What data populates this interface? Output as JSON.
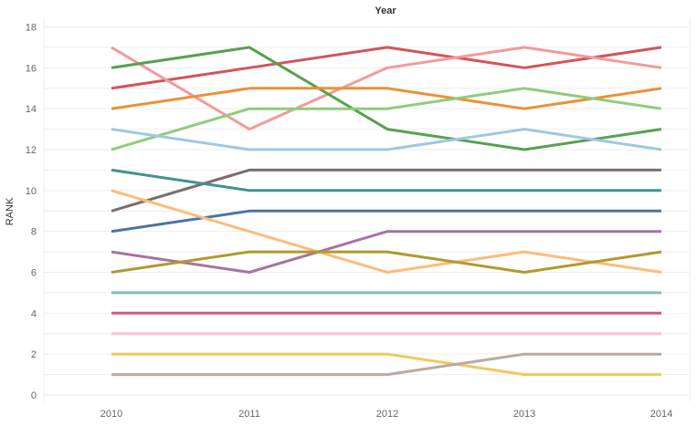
{
  "chart_data": {
    "type": "line",
    "title": "Year",
    "xlabel": "",
    "ylabel": "RANK",
    "x": [
      2010,
      2011,
      2012,
      2013,
      2014
    ],
    "xtick_labels": [
      "2010",
      "2011",
      "2012",
      "2013",
      "2014"
    ],
    "ylim": [
      0,
      18
    ],
    "yticks": [
      0,
      2,
      4,
      6,
      8,
      10,
      12,
      14,
      16,
      18
    ],
    "ytick_labels": [
      "0",
      "2",
      "4",
      "6",
      "8",
      "10",
      "12",
      "14",
      "16",
      "18"
    ],
    "grid": true,
    "legend": "none",
    "series": [
      {
        "color": "#d4545a",
        "values": [
          15,
          16,
          17,
          16,
          17
        ]
      },
      {
        "color": "#f49a9a",
        "values": [
          17,
          13,
          16,
          17,
          16
        ]
      },
      {
        "color": "#58a14e",
        "values": [
          16,
          17,
          13,
          12,
          13
        ]
      },
      {
        "color": "#ee8f36",
        "values": [
          14,
          15,
          15,
          14,
          15
        ]
      },
      {
        "color": "#8fcc7c",
        "values": [
          12,
          14,
          14,
          15,
          14
        ]
      },
      {
        "color": "#9fc8e3",
        "values": [
          13,
          12,
          12,
          13,
          12
        ]
      },
      {
        "color": "#7a6f6c",
        "values": [
          9,
          11,
          11,
          11,
          11
        ]
      },
      {
        "color": "#3f938d",
        "values": [
          11,
          10,
          10,
          10,
          10
        ]
      },
      {
        "color": "#4b74a2",
        "values": [
          8,
          9,
          9,
          9,
          9
        ]
      },
      {
        "color": "#fbbd79",
        "values": [
          10,
          8,
          6,
          7,
          6
        ]
      },
      {
        "color": "#a574a2",
        "values": [
          7,
          6,
          8,
          8,
          8
        ]
      },
      {
        "color": "#b09a30",
        "values": [
          6,
          7,
          7,
          6,
          7
        ]
      },
      {
        "color": "#86bcb5",
        "values": [
          5,
          5,
          5,
          5,
          5
        ]
      },
      {
        "color": "#c85f7b",
        "values": [
          4,
          4,
          4,
          4,
          4
        ]
      },
      {
        "color": "#f8c4d4",
        "values": [
          3,
          3,
          3,
          3,
          3
        ]
      },
      {
        "color": "#f2c85b",
        "values": [
          2,
          2,
          2,
          1,
          1
        ]
      },
      {
        "color": "#b9aba3",
        "values": [
          1,
          1,
          1,
          2,
          2
        ]
      }
    ]
  }
}
